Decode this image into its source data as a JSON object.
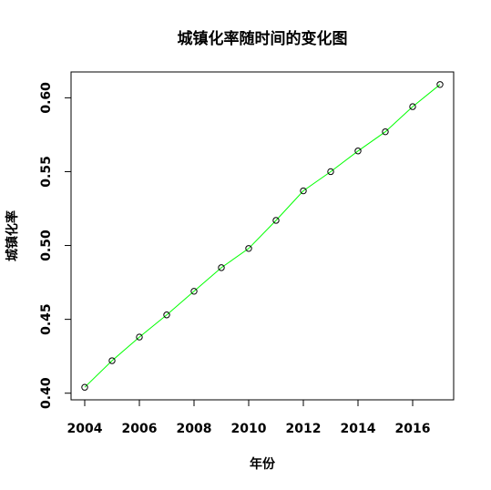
{
  "chart_data": {
    "type": "line",
    "title": "城镇化率随时间的变化图",
    "xlabel": "年份",
    "ylabel": "城镇化率",
    "x": [
      2004,
      2005,
      2006,
      2007,
      2008,
      2009,
      2010,
      2011,
      2012,
      2013,
      2014,
      2015,
      2016,
      2017
    ],
    "values": [
      0.404,
      0.422,
      0.438,
      0.453,
      0.469,
      0.485,
      0.498,
      0.517,
      0.537,
      0.55,
      0.564,
      0.577,
      0.594,
      0.609
    ],
    "x_ticks": [
      2004,
      2006,
      2008,
      2010,
      2012,
      2014,
      2016
    ],
    "y_ticks": [
      "0.40",
      "0.45",
      "0.50",
      "0.55",
      "0.60"
    ],
    "xlim": [
      2003.5,
      2017.5
    ],
    "ylim": [
      0.3955,
      0.6175
    ],
    "grid": false,
    "markers": "open-circle",
    "colors": {
      "line": "#00ff00",
      "marker": "#000000",
      "frame": "#000000"
    }
  }
}
